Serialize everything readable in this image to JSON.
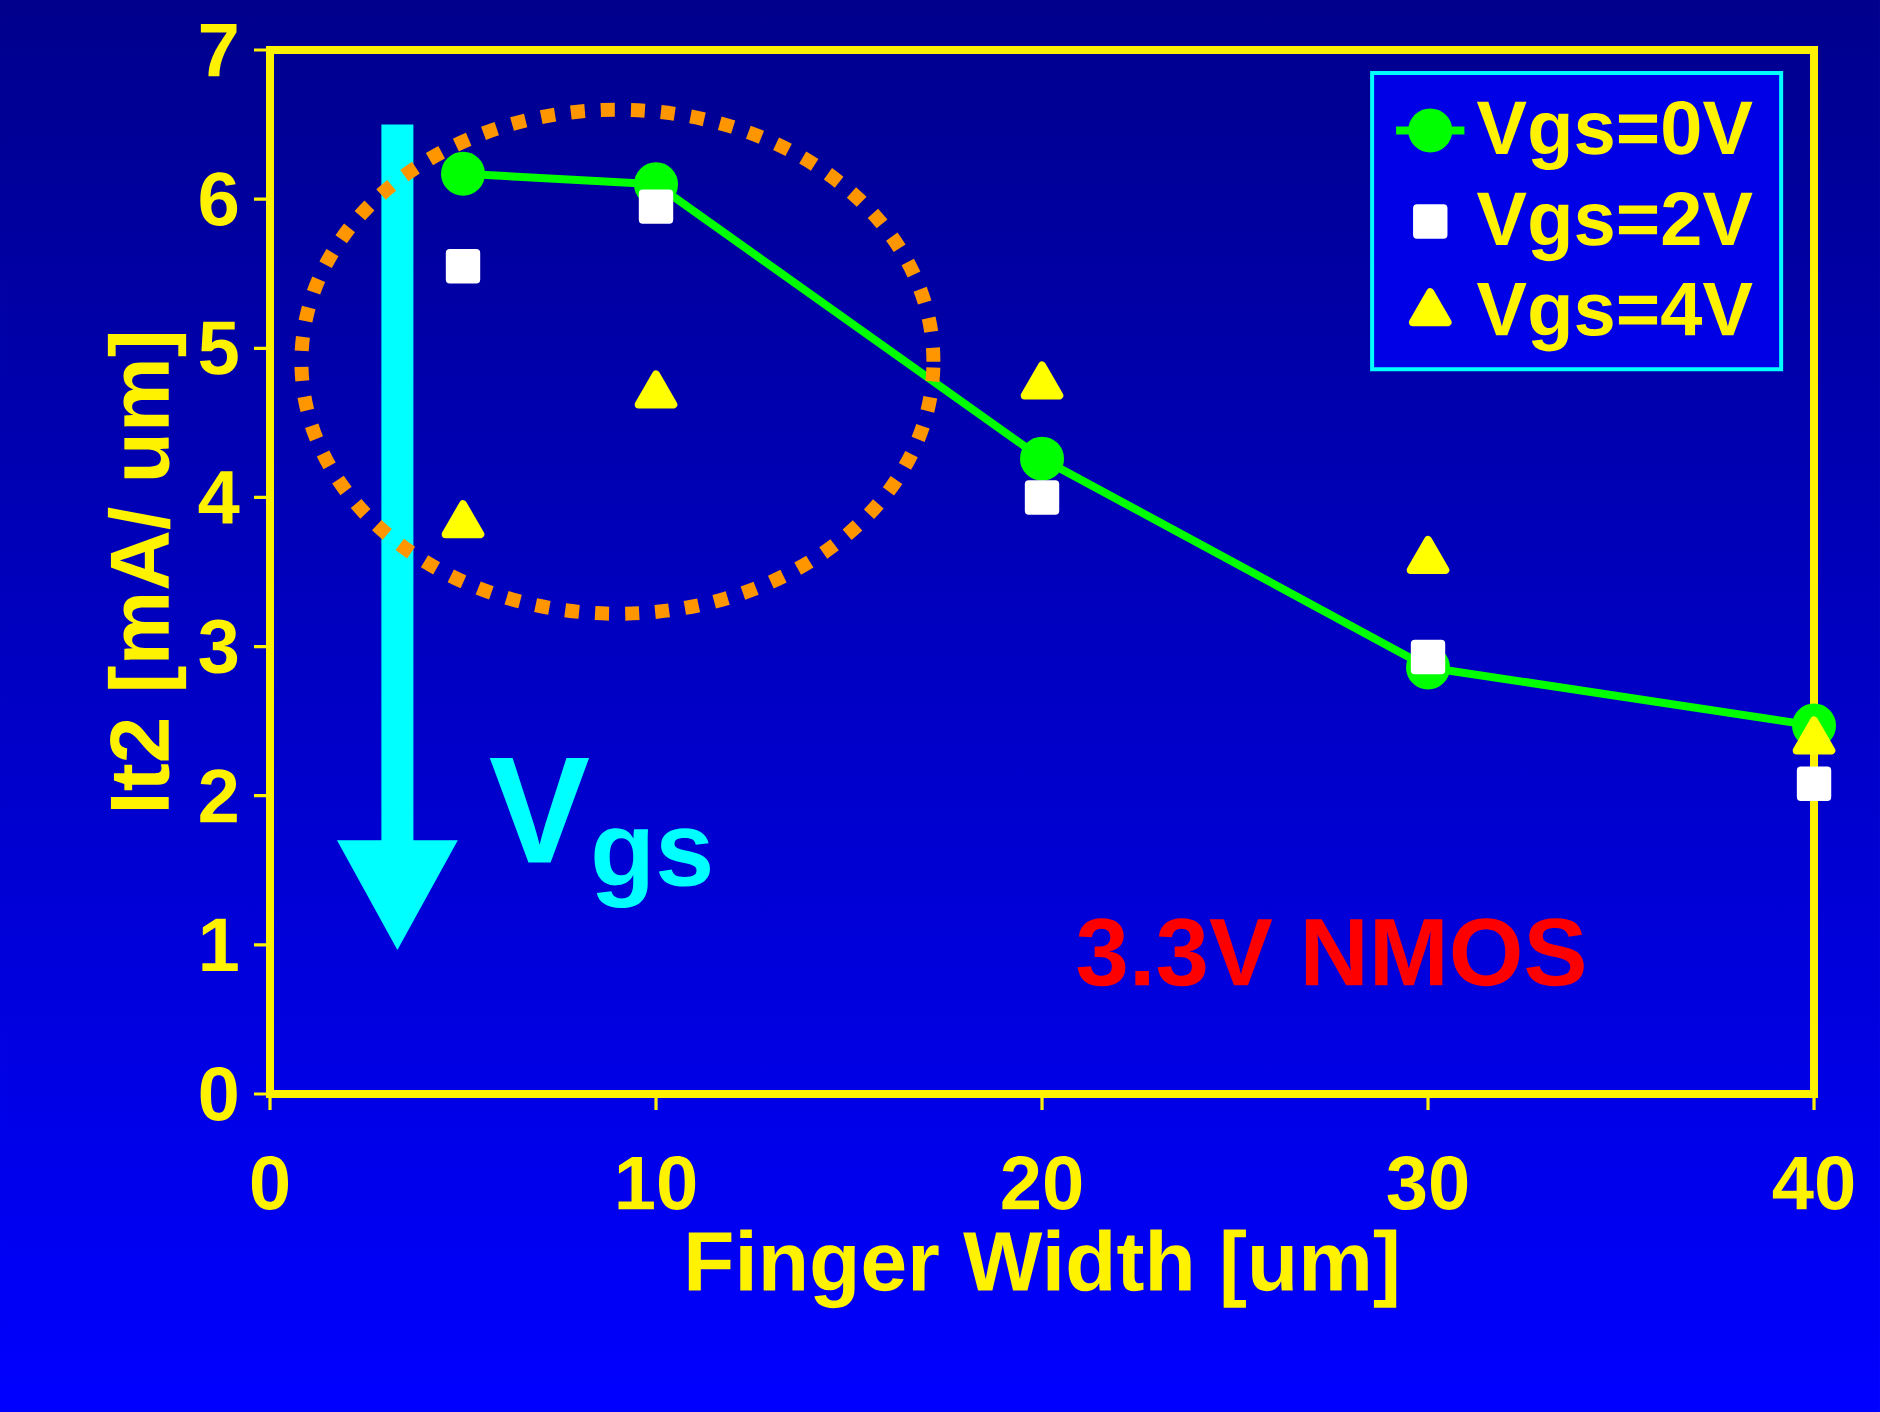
{
  "chart_data": {
    "type": "line",
    "xlabel": "Finger Width [um]",
    "ylabel": "It2 [mA/ um]",
    "x": [
      5,
      10,
      20,
      30,
      40
    ],
    "series": [
      {
        "name": "Vgs=0V",
        "marker": "circle",
        "color": "#00ff00",
        "values": [
          6.17,
          6.1,
          4.26,
          2.86,
          2.47
        ]
      },
      {
        "name": "Vgs=2V",
        "type": "scatter",
        "marker": "square",
        "color": "#ffffff",
        "values": [
          5.55,
          5.95,
          4.0,
          2.93,
          2.08
        ]
      },
      {
        "name": "Vgs=4V",
        "type": "scatter",
        "marker": "triangle",
        "color": "#ffff00",
        "values": [
          3.82,
          4.69,
          4.75,
          3.58,
          2.37
        ]
      }
    ],
    "xlim": [
      0,
      40
    ],
    "xticks": [
      0,
      10,
      20,
      30,
      40
    ],
    "ylim": [
      0,
      7
    ],
    "yticks": [
      0,
      1,
      2,
      3,
      4,
      5,
      6,
      7
    ],
    "legend": "top right",
    "grid": false,
    "annotations": [
      "V$_{gs}$",
      "3.3V NMOS"
    ]
  }
}
